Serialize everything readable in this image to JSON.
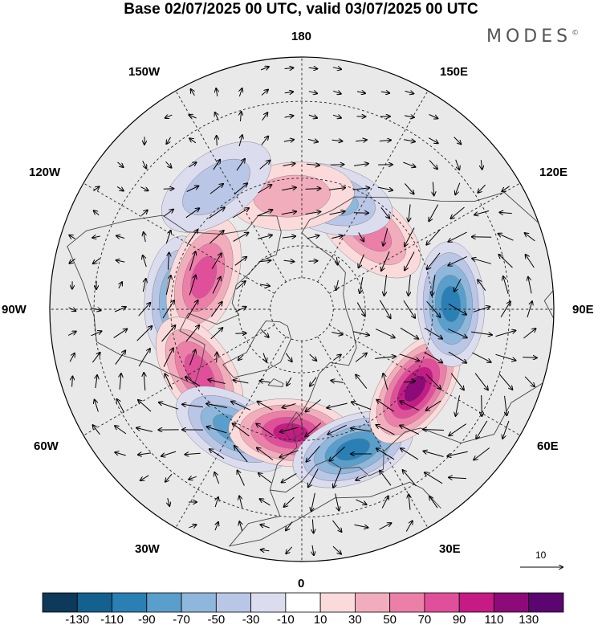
{
  "header": {
    "title": "Base 02/07/2025 00 UTC, valid 03/07/2025 00 UTC",
    "brand": "MODES",
    "brand_mark": "©"
  },
  "map": {
    "projection": "north-polar-stereographic",
    "longitude_labels": {
      "top": "180",
      "top_left": "150W",
      "top_right": "150E",
      "upper_left": "120W",
      "upper_right": "120E",
      "left": "90W",
      "right": "90E",
      "lower_left": "60W",
      "lower_right": "60E",
      "bottom_left": "30W",
      "bottom_right": "30E",
      "bottom": "0"
    },
    "reference_vector_value": "10",
    "anomaly_centers": [
      {
        "lon": -95,
        "lat": 52,
        "sign": "negative",
        "magnitude": 80
      },
      {
        "lon": -108,
        "lat": 58,
        "sign": "positive",
        "magnitude": 70
      },
      {
        "lon": -58,
        "lat": 53,
        "sign": "positive",
        "magnitude": 85
      },
      {
        "lon": -30,
        "lat": 48,
        "sign": "negative",
        "magnitude": 80
      },
      {
        "lon": -5,
        "lat": 52,
        "sign": "positive",
        "magnitude": 105
      },
      {
        "lon": 20,
        "lat": 45,
        "sign": "negative",
        "magnitude": 100
      },
      {
        "lon": 55,
        "lat": 48,
        "sign": "positive",
        "magnitude": 115
      },
      {
        "lon": 92,
        "lat": 45,
        "sign": "negative",
        "magnitude": 90
      },
      {
        "lon": 140,
        "lat": 58,
        "sign": "positive",
        "magnitude": 60
      },
      {
        "lon": 165,
        "lat": 55,
        "sign": "negative",
        "magnitude": 55
      },
      {
        "lon": -175,
        "lat": 55,
        "sign": "positive",
        "magnitude": 40
      },
      {
        "lon": -145,
        "lat": 45,
        "sign": "negative",
        "magnitude": 30
      }
    ]
  },
  "colorbar": {
    "labels": [
      "-130",
      "-110",
      "-90",
      "-70",
      "-50",
      "-30",
      "-10",
      "10",
      "30",
      "50",
      "70",
      "90",
      "110",
      "130"
    ],
    "colors": [
      "#0d3a5a",
      "#14608f",
      "#2a80b5",
      "#5a9fcb",
      "#8fb7dc",
      "#b9c6e6",
      "#dcdcef",
      "#ffffff",
      "#fadada",
      "#f2adbc",
      "#ec7fa8",
      "#e0509a",
      "#c61a85",
      "#8e0a78",
      "#5b0670"
    ]
  }
}
